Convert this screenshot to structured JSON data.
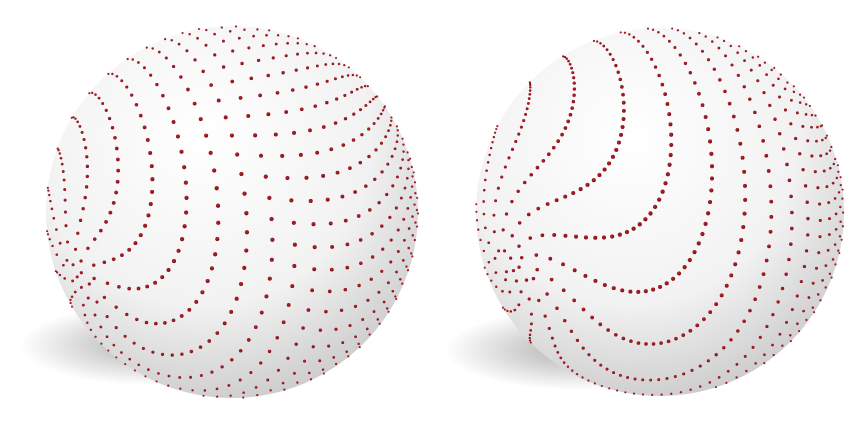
{
  "scene": {
    "background_color": "#ffffff",
    "sphere_color": "#f2f2f2",
    "sphere_shade_color": "#c9c9c9",
    "point_color": "#c0222a",
    "point_shade_color": "#7a0f15",
    "shadow_color": "#6f6f6f"
  },
  "spheres": [
    {
      "name": "left-sphere",
      "point_distribution": "spiral",
      "point_count": 1400,
      "pole_direction": [
        -0.82,
        0.35,
        0.45
      ],
      "spiral_twist": 0.55
    },
    {
      "name": "right-sphere",
      "point_distribution": "spiral",
      "point_count": 1400,
      "pole_direction": [
        -0.78,
        0.32,
        0.53
      ],
      "spiral_twist": 0.85
    }
  ]
}
